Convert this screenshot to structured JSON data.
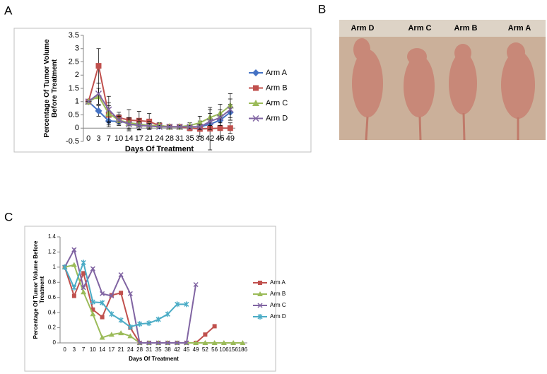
{
  "panels": [
    "A",
    "B",
    "C"
  ],
  "photo": {
    "labels": [
      "Arm D",
      "Arm C",
      "Arm B",
      "Arm A"
    ]
  },
  "chart_data": [
    {
      "type": "line",
      "x_label": "Days Of Treatment",
      "y_label": "Percentage Of Tumor Volume Before Treatment",
      "categories": [
        "0",
        "3",
        "7",
        "10",
        "14",
        "17",
        "21",
        "24",
        "28",
        "31",
        "35",
        "38",
        "42",
        "45",
        "49"
      ],
      "ylim": [
        -0.5,
        3.5
      ],
      "yticks": [
        -0.5,
        0,
        0.5,
        1,
        1.5,
        2,
        2.5,
        3,
        3.5
      ],
      "grid": false,
      "legend": "right",
      "series": [
        {
          "name": "Arm A",
          "color": "#4472c4",
          "marker": "diamond",
          "values": [
            1,
            0.65,
            0.27,
            0.25,
            0.2,
            0.15,
            0.1,
            0.08,
            0.05,
            0.05,
            0.05,
            0.05,
            0.15,
            0.3,
            0.6
          ],
          "errors": [
            0,
            0.2,
            0.15,
            0.1,
            0.1,
            0.1,
            0.08,
            0.05,
            0.05,
            0.05,
            0.05,
            0.05,
            0.1,
            0.2,
            0.3
          ]
        },
        {
          "name": "Arm B",
          "color": "#c0504d",
          "marker": "square",
          "values": [
            1,
            2.35,
            0.5,
            0.4,
            0.3,
            0.28,
            0.25,
            0.1,
            0.05,
            0.05,
            0,
            -0.03,
            -0.02,
            0,
            0
          ],
          "errors": [
            0,
            0.65,
            0.45,
            0.2,
            0.4,
            0.35,
            0.3,
            0.1,
            0.05,
            0.05,
            0.1,
            0.3,
            0.8,
            0.4,
            0.2
          ]
        },
        {
          "name": "Arm C",
          "color": "#9bbb59",
          "marker": "triangle",
          "values": [
            1,
            1.2,
            0.55,
            0.3,
            0.2,
            0.15,
            0.1,
            0.1,
            0.05,
            0.05,
            0.1,
            0.2,
            0.4,
            0.55,
            0.85
          ],
          "errors": [
            0,
            0.3,
            0.3,
            0.15,
            0.2,
            0.2,
            0.15,
            0.1,
            0.05,
            0.05,
            0.1,
            0.25,
            0.3,
            0.35,
            0.45
          ]
        },
        {
          "name": "Arm D",
          "color": "#8064a2",
          "marker": "x",
          "values": [
            1,
            1.3,
            0.7,
            0.3,
            0.15,
            0.1,
            0.08,
            0.05,
            0.05,
            0.05,
            0.05,
            0.05,
            0.25,
            0.4,
            0.7
          ],
          "errors": [
            0,
            0.4,
            0.5,
            0.2,
            0.2,
            0.15,
            0.1,
            0.05,
            0.05,
            0.05,
            0.05,
            0.1,
            0.3,
            0.3,
            0.4
          ]
        }
      ]
    },
    {
      "type": "line",
      "x_label": "Days Of Treatment",
      "y_label": "Percentage Of Tumor Volume Before Treatment",
      "categories": [
        "0",
        "3",
        "7",
        "10",
        "14",
        "17",
        "21",
        "24",
        "28",
        "31",
        "35",
        "38",
        "42",
        "45",
        "49",
        "52",
        "56",
        "106",
        "156",
        "186"
      ],
      "ylim": [
        0,
        1.4
      ],
      "yticks": [
        0,
        0.2,
        0.4,
        0.6,
        0.8,
        1,
        1.2,
        1.4
      ],
      "grid": false,
      "legend": "right",
      "series": [
        {
          "name": "Arm A",
          "color": "#c0504d",
          "marker": "square",
          "values": [
            1,
            0.62,
            0.92,
            0.44,
            0.34,
            0.63,
            0.66,
            0.2,
            0,
            0,
            0,
            0,
            0,
            0,
            0,
            0.11,
            0.22,
            null,
            null,
            null
          ]
        },
        {
          "name": "Arm B",
          "color": "#9bbb59",
          "marker": "triangle",
          "values": [
            1,
            1.03,
            0.67,
            0.38,
            0.07,
            0.11,
            0.13,
            0.09,
            0,
            0,
            0,
            0,
            0,
            0,
            0,
            0,
            0,
            0,
            0,
            0
          ]
        },
        {
          "name": "Arm C",
          "color": "#8064a2",
          "marker": "x",
          "values": [
            1,
            1.23,
            0.73,
            0.98,
            0.65,
            0.62,
            0.9,
            0.65,
            0,
            0,
            0,
            0,
            0,
            0,
            0.77,
            null,
            null,
            null,
            null,
            null
          ]
        },
        {
          "name": "Arm D",
          "color": "#4bacc6",
          "marker": "star",
          "values": [
            1,
            0.73,
            1.06,
            0.54,
            0.53,
            0.38,
            0.3,
            0.21,
            0.25,
            0.26,
            0.31,
            0.38,
            0.51,
            0.51,
            null,
            null,
            null,
            null,
            null,
            null
          ]
        }
      ]
    }
  ]
}
